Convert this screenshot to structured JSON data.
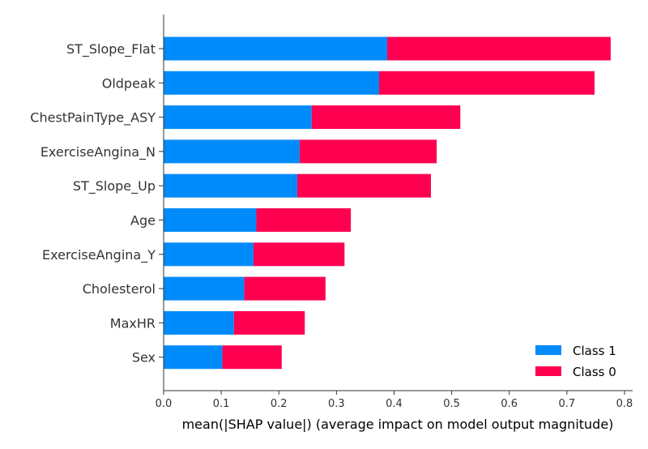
{
  "chart_data": {
    "type": "bar",
    "orientation": "horizontal",
    "stacked": true,
    "categories": [
      "ST_Slope_Flat",
      "Oldpeak",
      "ChestPainType_ASY",
      "ExerciseAngina_N",
      "ST_Slope_Up",
      "Age",
      "ExerciseAngina_Y",
      "Cholesterol",
      "MaxHR",
      "Sex"
    ],
    "series": [
      {
        "name": "Class 1",
        "color": "#008bfb",
        "values": [
          0.388,
          0.374,
          0.257,
          0.236,
          0.232,
          0.161,
          0.156,
          0.14,
          0.122,
          0.102
        ]
      },
      {
        "name": "Class 0",
        "color": "#ff0051",
        "values": [
          0.388,
          0.374,
          0.258,
          0.238,
          0.232,
          0.164,
          0.158,
          0.141,
          0.123,
          0.103
        ]
      }
    ],
    "xlabel": "mean(|SHAP value|) (average impact on model output magnitude)",
    "xlim": [
      0,
      0.8
    ],
    "xticks": [
      "0.0",
      "0.1",
      "0.2",
      "0.3",
      "0.4",
      "0.5",
      "0.6",
      "0.7",
      "0.8"
    ],
    "legend_position": "bottom-right",
    "grid": false
  }
}
